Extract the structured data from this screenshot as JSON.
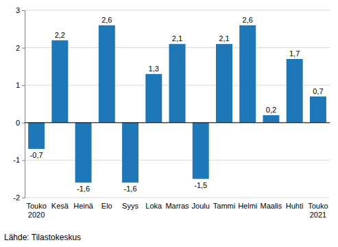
{
  "chart_data": {
    "type": "bar",
    "categories": [
      "Touko 2020",
      "Kesä",
      "Heinä",
      "Elo",
      "Syys",
      "Loka",
      "Marras",
      "Joulu",
      "Tammi",
      "Helmi",
      "Maalis",
      "Huhti",
      "Touko 2021"
    ],
    "values": [
      -0.7,
      2.2,
      -1.6,
      2.6,
      -1.6,
      1.3,
      2.1,
      -1.5,
      2.1,
      2.6,
      0.2,
      1.7,
      0.7
    ],
    "value_labels": [
      "-0,7",
      "2,2",
      "-1,6",
      "2,6",
      "-1,6",
      "1,3",
      "2,1",
      "-1,5",
      "2,1",
      "2,6",
      "0,2",
      "1,7",
      "0,7"
    ],
    "data_labels": true,
    "color": "#1f77b8",
    "ylim": [
      -2,
      3
    ],
    "yticks": [
      -2,
      -1,
      0,
      1,
      2,
      3
    ],
    "grid": true,
    "source": "Lähde: Tilastokeskus"
  }
}
